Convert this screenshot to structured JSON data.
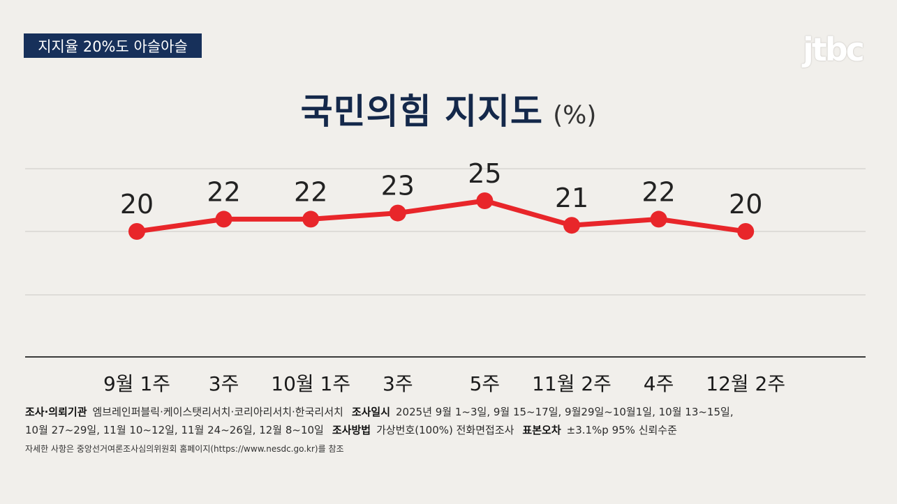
{
  "header": {
    "badge": "지지율 20%도 아슬아슬",
    "logo": "jtbc",
    "title": "국민의힘 지지도",
    "title_unit": "(%)"
  },
  "colors": {
    "line": "#e8262a",
    "badge_bg": "#17305a",
    "title": "#14284a",
    "background": "#f1efeb"
  },
  "chart_data": {
    "type": "line",
    "categories": [
      "9월 1주",
      "3주",
      "10월 1주",
      "3주",
      "5주",
      "11월 2주",
      "4주",
      "12월 2주"
    ],
    "series": [
      {
        "values": [
          20,
          22,
          22,
          23,
          25,
          21,
          22,
          20
        ]
      }
    ],
    "title": "국민의힘 지지도",
    "ylabel": "",
    "xlabel": "",
    "grid": true,
    "data_labels": true
  },
  "footer": {
    "org_label": "조사·의뢰기관",
    "org_value": "엠브레인퍼블릭·케이스탯리서치·코리아리서치·한국리서치",
    "date_label": "조사일시",
    "date_value_1": "2025년 9월 1~3일, 9월 15~17일, 9월29일~10월1일, 10월 13~15일,",
    "date_value_2": "10월 27~29일, 11월 10~12일, 11월 24~26일, 12월 8~10일",
    "method_label": "조사방법",
    "method_value": "가상번호(100%) 전화면접조사",
    "error_label": "표본오차",
    "error_value": "±3.1%p 95% 신뢰수준",
    "note": "자세한 사항은 중앙선거여론조사심의위원회 홈페이지(https://www.nesdc.go.kr)를 참조"
  }
}
